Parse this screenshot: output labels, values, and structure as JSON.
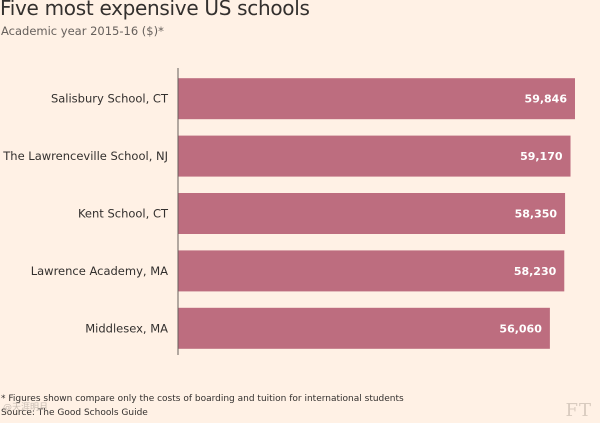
{
  "title": "Five most expensive US schools",
  "subtitle": "Academic year 2015-16 ($)*",
  "footnote": "* Figures shown compare only the costs of boarding and tuition for international students",
  "source": "Source: The Good Schools Guide",
  "logo": "FT",
  "watermark": "@天涯明月",
  "colors": {
    "background": "#fff1e5",
    "bar": "#bd6d7f",
    "axis": "#66605c"
  },
  "chart_data": {
    "type": "bar",
    "orientation": "horizontal",
    "title": "Five most expensive US schools",
    "subtitle": "Academic year 2015-16 ($)*",
    "categories": [
      "Salisbury School, CT",
      "The Lawrenceville School, NJ",
      "Kent School, CT",
      "Lawrence Academy, MA",
      "Middlesex, MA"
    ],
    "values": [
      59846,
      59170,
      58350,
      58230,
      56060
    ],
    "value_labels": [
      "59,846",
      "59,170",
      "58,350",
      "58,230",
      "56,060"
    ],
    "xlim": [
      0,
      59846
    ],
    "grid": false,
    "legend": "none"
  }
}
